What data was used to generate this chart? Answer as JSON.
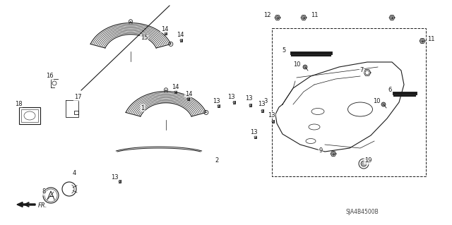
{
  "bg_color": "#ffffff",
  "line_color": "#1a1a1a",
  "diagram_id": "SJA4B4500B",
  "font_size": 7,
  "font_size_small": 6
}
